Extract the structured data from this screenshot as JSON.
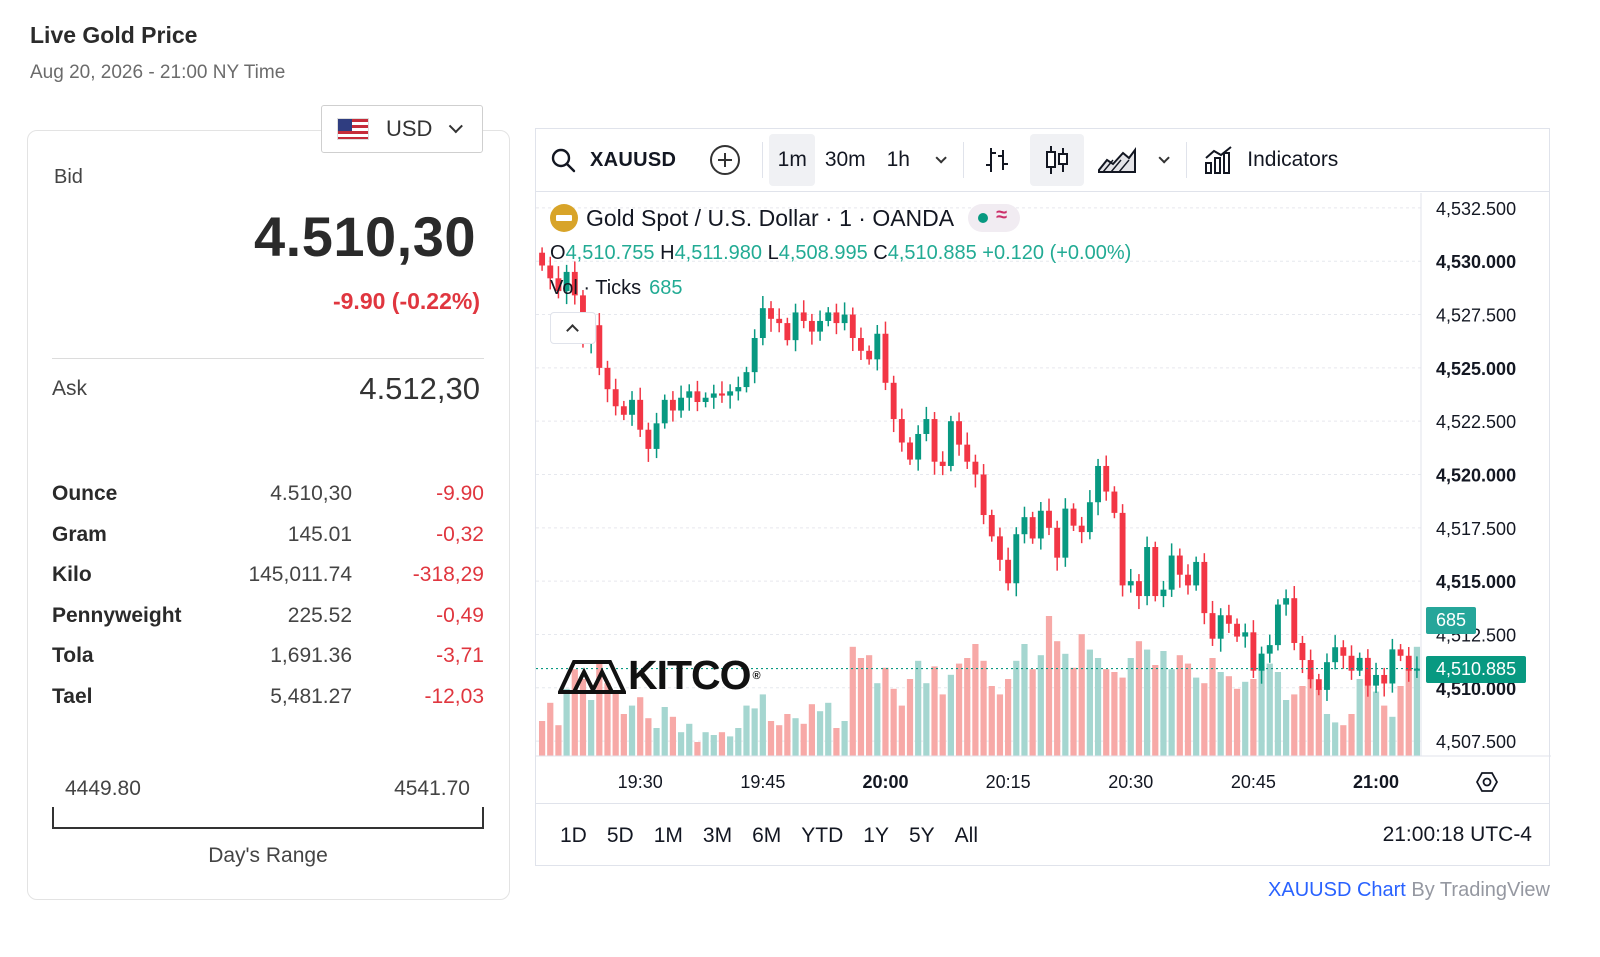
{
  "header": {
    "title": "Live Gold Price",
    "subtitle": "Aug 20, 2026 - 21:00 NY Time"
  },
  "currency": {
    "selected": "USD",
    "flag_icon": "us-flag-icon"
  },
  "quote": {
    "bid_label": "Bid",
    "bid": "4.510,30",
    "change": "-9.90 (-0.22%)",
    "ask_label": "Ask",
    "ask": "4.512,30"
  },
  "units": [
    {
      "name": "Ounce",
      "price": "4.510,30",
      "change": "-9.90"
    },
    {
      "name": "Gram",
      "price": "145.01",
      "change": "-0,32"
    },
    {
      "name": "Kilo",
      "price": "145,011.74",
      "change": "-318,29"
    },
    {
      "name": "Pennyweight",
      "price": "225.52",
      "change": "-0,49"
    },
    {
      "name": "Tola",
      "price": "1,691.36",
      "change": "-3,71"
    },
    {
      "name": "Tael",
      "price": "5,481.27",
      "change": "-12,03"
    }
  ],
  "day_range": {
    "low": "4449.80",
    "high": "4541.70",
    "label": "Day's Range"
  },
  "toolbar": {
    "symbol": "XAUUSD",
    "intervals": [
      "1m",
      "30m",
      "1h"
    ],
    "active_interval": "1m",
    "indicators_label": "Indicators"
  },
  "legend": {
    "title": "Gold Spot / U.S. Dollar · 1 · OANDA",
    "o_label": "O",
    "o": "4,510.755",
    "h_label": "H",
    "h": "4,511.980",
    "l_label": "L",
    "l": "4,508.995",
    "c_label": "C",
    "c": "4,510.885",
    "change": "+0.120 (+0.00%)",
    "vol_label": "Vol · Ticks",
    "vol_value": "685"
  },
  "watermark": {
    "text": "KITCO"
  },
  "tags": {
    "volume": "685",
    "last_price": "4,510.885"
  },
  "colors": {
    "up": "#089981",
    "down": "#f23645",
    "vol_up": "#a5d6d0",
    "vol_down": "#f7a9a7",
    "gold": "#d8a429"
  },
  "range_buttons": [
    "1D",
    "5D",
    "1M",
    "3M",
    "6M",
    "YTD",
    "1Y",
    "5Y",
    "All"
  ],
  "clock": "21:00:18 UTC-4",
  "credit": {
    "link": "XAUUSD Chart",
    "by": " By TradingView"
  },
  "chart_data": {
    "type": "candlestick",
    "x_ticks": [
      "19:30",
      "19:45",
      "20:00",
      "20:15",
      "20:30",
      "20:45",
      "21:00"
    ],
    "y_ticks": [
      "4,507.500",
      "4,510.000",
      "4,512.500",
      "4,515.000",
      "4,517.500",
      "4,520.000",
      "4,522.500",
      "4,525.000",
      "4,527.500",
      "4,530.000",
      "4,532.500"
    ],
    "bold_y_ticks": [
      "4,510.000",
      "4,515.000",
      "4,520.000",
      "4,525.000",
      "4,530.000"
    ],
    "ylim": [
      4506.8,
      4533.2
    ],
    "candles_close": [
      4529.8,
      4529.2,
      4528.6,
      4529.5,
      4528.4,
      4526.2,
      4527.0,
      4525.0,
      4524.0,
      4523.2,
      4522.8,
      4523.5,
      4522.1,
      4521.2,
      4522.4,
      4523.5,
      4523.0,
      4523.6,
      4523.9,
      4523.4,
      4523.6,
      4523.8,
      4523.7,
      4523.9,
      4524.1,
      4524.8,
      4526.4,
      4527.8,
      4527.3,
      4527.1,
      4526.3,
      4527.6,
      4527.2,
      4526.7,
      4527.2,
      4527.6,
      4527.1,
      4527.5,
      4526.4,
      4525.8,
      4525.4,
      4526.6,
      4524.3,
      4522.6,
      4521.5,
      4520.7,
      4521.9,
      4522.6,
      4520.6,
      4520.4,
      4522.5,
      4521.4,
      4520.6,
      4520.0,
      4518.1,
      4517.1,
      4516.0,
      4514.9,
      4517.2,
      4518.0,
      4517.0,
      4518.3,
      4517.5,
      4516.1,
      4518.4,
      4517.6,
      4517.3,
      4518.7,
      4520.4,
      4519.2,
      4518.2,
      4514.8,
      4515.0,
      4514.3,
      4516.6,
      4514.3,
      4514.6,
      4516.2,
      4515.3,
      4514.8,
      4515.9,
      4513.5,
      4512.3,
      4513.4,
      4513.0,
      4512.4,
      4512.6,
      4510.8,
      4511.6,
      4512.0,
      4513.9,
      4514.2,
      4512.1,
      4511.3,
      4510.4,
      4509.9,
      4511.2,
      4511.9,
      4511.5,
      4510.8,
      4511.4,
      4510.1,
      4510.6,
      4510.2,
      4511.8,
      4511.5,
      4510.8,
      4510.9
    ],
    "open_first": 4530.4,
    "volume_max": 100,
    "volumes": [
      25,
      38,
      22,
      48,
      62,
      55,
      40,
      68,
      52,
      46,
      30,
      36,
      42,
      27,
      20,
      35,
      28,
      17,
      23,
      10,
      17,
      15,
      17,
      14,
      20,
      36,
      34,
      44,
      25,
      22,
      30,
      27,
      23,
      37,
      32,
      38,
      20,
      25,
      78,
      70,
      72,
      52,
      63,
      48,
      36,
      55,
      68,
      52,
      64,
      44,
      58,
      66,
      70,
      80,
      68,
      50,
      44,
      55,
      68,
      80,
      62,
      72,
      100,
      82,
      73,
      63,
      87,
      76,
      70,
      62,
      60,
      56,
      70,
      82,
      76,
      65,
      75,
      62,
      72,
      66,
      56,
      52,
      70,
      60,
      57,
      48,
      53,
      55,
      64,
      66,
      60,
      40,
      44,
      50,
      58,
      48,
      30,
      24,
      22,
      30,
      55,
      58,
      46,
      36,
      28,
      50,
      62,
      78
    ]
  }
}
